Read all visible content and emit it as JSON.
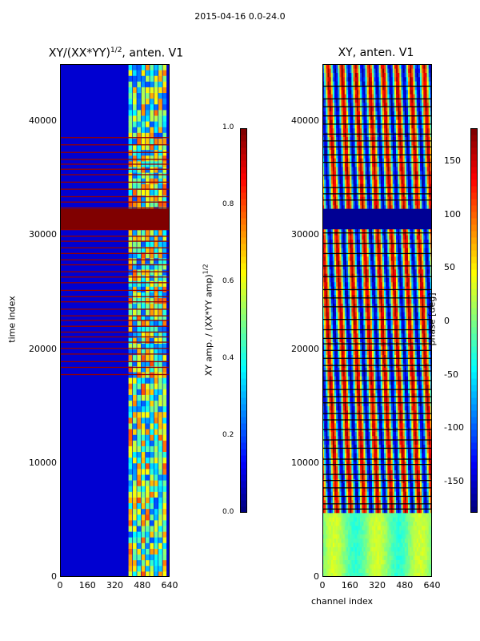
{
  "suptitle": "2015-04-16 0.0-24.0",
  "chart_data": [
    {
      "type": "heatmap",
      "title": "XY/(XX*YY)^1/2, anten. V1",
      "title_main": "XY/(XX*YY)",
      "title_sup": "1/2",
      "title_tail": ", anten. V1",
      "xlabel": "",
      "ylabel": "time index",
      "xlim": [
        0,
        640
      ],
      "ylim": [
        0,
        45000
      ],
      "xticks": [
        "0",
        "160",
        "320",
        "480",
        "640"
      ],
      "yticks": [
        "0",
        "10000",
        "20000",
        "30000",
        "40000"
      ],
      "colorbar": {
        "label": "XY amp. / (XX*YY amp)^1/2",
        "label_main": "XY amp. / (XX*YY amp)",
        "label_sup": "1/2",
        "range": [
          0.0,
          1.0
        ],
        "ticks": [
          "0.0",
          "0.2",
          "0.4",
          "0.6",
          "0.8",
          "1.0"
        ],
        "colormap": "jet"
      },
      "features": [
        {
          "desc": "saturated (1.0) time block",
          "t_start": 30500,
          "t_end": 32300
        },
        {
          "desc": "dense flagged rows",
          "t_start": 17800,
          "t_end": 38600
        },
        {
          "desc": "structured channels",
          "ch_start": 400,
          "ch_end": 620
        }
      ]
    },
    {
      "type": "heatmap",
      "title": "XY, anten. V1",
      "xlabel": "channel index",
      "ylabel": "",
      "xlim": [
        0,
        640
      ],
      "ylim": [
        0,
        45000
      ],
      "xticks": [
        "0",
        "160",
        "320",
        "480",
        "640"
      ],
      "yticks": [
        "0",
        "10000",
        "20000",
        "30000",
        "40000"
      ],
      "colorbar": {
        "label": "phase [deg]",
        "range": [
          -180,
          180
        ],
        "ticks": [
          "-150",
          "-100",
          "-50",
          "0",
          "50",
          "100",
          "150"
        ],
        "colormap": "jet"
      },
      "features": [
        {
          "desc": "phase -180 time block",
          "t_start": 30500,
          "t_end": 32300
        },
        {
          "desc": "phase wrapping stripes",
          "period_channels": 80
        }
      ]
    }
  ]
}
